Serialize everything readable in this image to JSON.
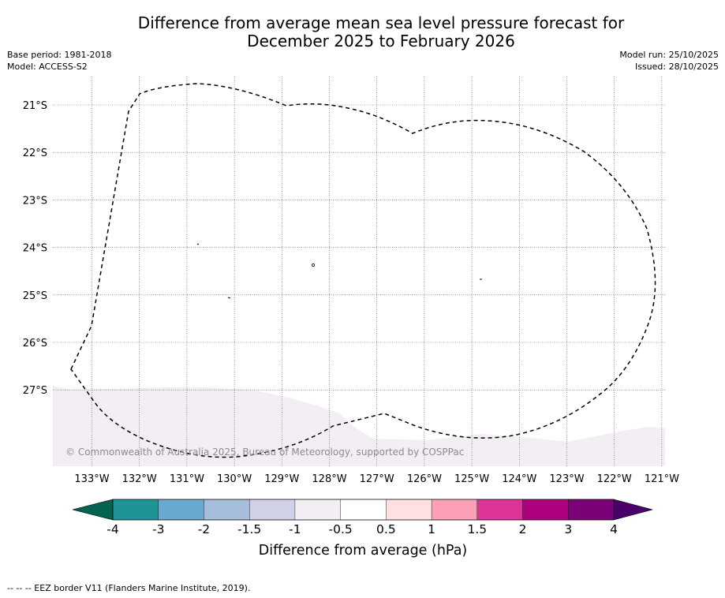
{
  "title": {
    "line1": "Difference from average mean sea level pressure forecast for",
    "line2": "December 2025 to February 2026"
  },
  "meta": {
    "base_period": "Base period: 1981-2018",
    "model": "Model: ACCESS-S2",
    "model_run": "Model run: 25/10/2025",
    "issued": "Issued: 28/10/2025"
  },
  "map": {
    "lon_labels": [
      "133°W",
      "132°W",
      "131°W",
      "130°W",
      "129°W",
      "128°W",
      "127°W",
      "126°W",
      "125°W",
      "124°W",
      "123°W",
      "122°W",
      "121°W"
    ],
    "lat_labels": [
      "21°S",
      "22°S",
      "23°S",
      "24°S",
      "25°S",
      "26°S",
      "27°S"
    ],
    "copyright": "© Commonwealth of Australia 2025, Bureau of Meteorology, supported by COSPPac",
    "field_colors": {
      "neutral": "#ffffff",
      "light_negative": "#f3edf4"
    }
  },
  "colorbar": {
    "tick_labels": [
      "-4",
      "-3",
      "-2",
      "-1.5",
      "-1",
      "-0.5",
      "0.5",
      "1",
      "1.5",
      "2",
      "3",
      "4"
    ],
    "colors": [
      "#0d7563",
      "#1f9497",
      "#67a9cf",
      "#a6bddb",
      "#d0d1e6",
      "#f3edf4",
      "#ffffff",
      "#fee0e1",
      "#fa9fb5",
      "#dd3497",
      "#ae017e",
      "#7a0177"
    ],
    "extend_low_color": "#016450",
    "extend_high_color": "#49006a",
    "label": "Difference from average (hPa)"
  },
  "footnote": "--  --  -- EEZ border V11 (Flanders Marine Institute, 2019)."
}
